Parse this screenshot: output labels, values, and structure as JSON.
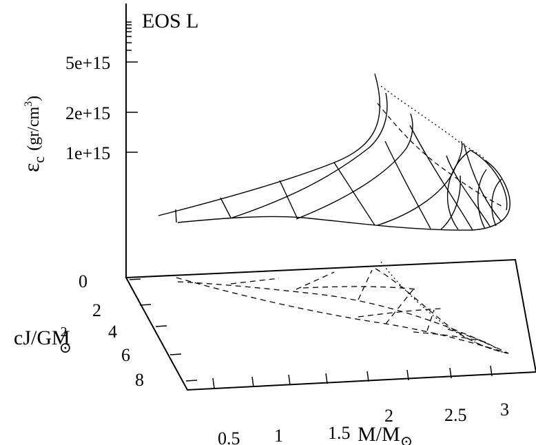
{
  "chart_data": {
    "type": "surface3d",
    "title": "EOS L",
    "xlabel": "M/M",
    "xlabel_sub": "⊙",
    "ylabel": "cJ/GM",
    "ylabel_sup": "2",
    "ylabel_sub": "⊙",
    "zlabel_main": "ε",
    "zlabel_sub": "c",
    "zlabel_unit_pre": "(gr/cm",
    "zlabel_unit_sup": "3",
    "zlabel_unit_post": ")",
    "xlim": [
      0,
      3.2
    ],
    "ylim": [
      0,
      9
    ],
    "z_scale": "log",
    "x_ticks": [
      "0.5",
      "1",
      "1.5",
      "2",
      "2.5",
      "3"
    ],
    "y_ticks": [
      "0",
      "2",
      "4",
      "6",
      "8"
    ],
    "z_ticks": [
      "1e+15",
      "2e+15",
      "5e+15"
    ],
    "surface_grid": "wireframe mesh of rotating EOS L sequences (solid), projected onto base plane (dashed)",
    "nonrotating_limit_line": "dotted"
  },
  "colors": {
    "line": "#000000",
    "background": "#ffffff"
  }
}
